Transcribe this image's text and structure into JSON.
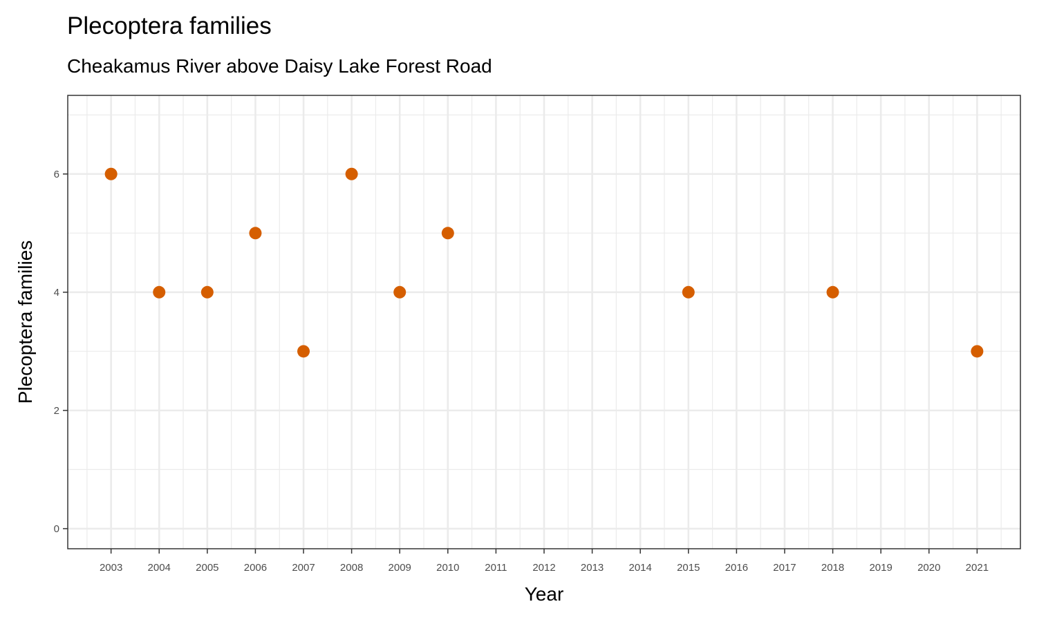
{
  "chart_data": {
    "type": "scatter",
    "title": "Plecoptera families",
    "subtitle": "Cheakamus River above Daisy Lake Forest Road",
    "xlabel": "Year",
    "ylabel": "Plecoptera families",
    "x_ticks": [
      2003,
      2004,
      2005,
      2006,
      2007,
      2008,
      2009,
      2010,
      2011,
      2012,
      2013,
      2014,
      2015,
      2016,
      2017,
      2018,
      2019,
      2020,
      2021
    ],
    "y_ticks": [
      0,
      2,
      4,
      6
    ],
    "xlim": [
      2002.1,
      2021.9
    ],
    "ylim": [
      -0.34,
      7.33
    ],
    "grid": true,
    "point_color": "#D55E00",
    "points": [
      {
        "x": 2003,
        "y": 6
      },
      {
        "x": 2004,
        "y": 4
      },
      {
        "x": 2005,
        "y": 4
      },
      {
        "x": 2006,
        "y": 5
      },
      {
        "x": 2007,
        "y": 3
      },
      {
        "x": 2008,
        "y": 6
      },
      {
        "x": 2009,
        "y": 4
      },
      {
        "x": 2010,
        "y": 5
      },
      {
        "x": 2015,
        "y": 4
      },
      {
        "x": 2018,
        "y": 4
      },
      {
        "x": 2021,
        "y": 3
      }
    ]
  }
}
